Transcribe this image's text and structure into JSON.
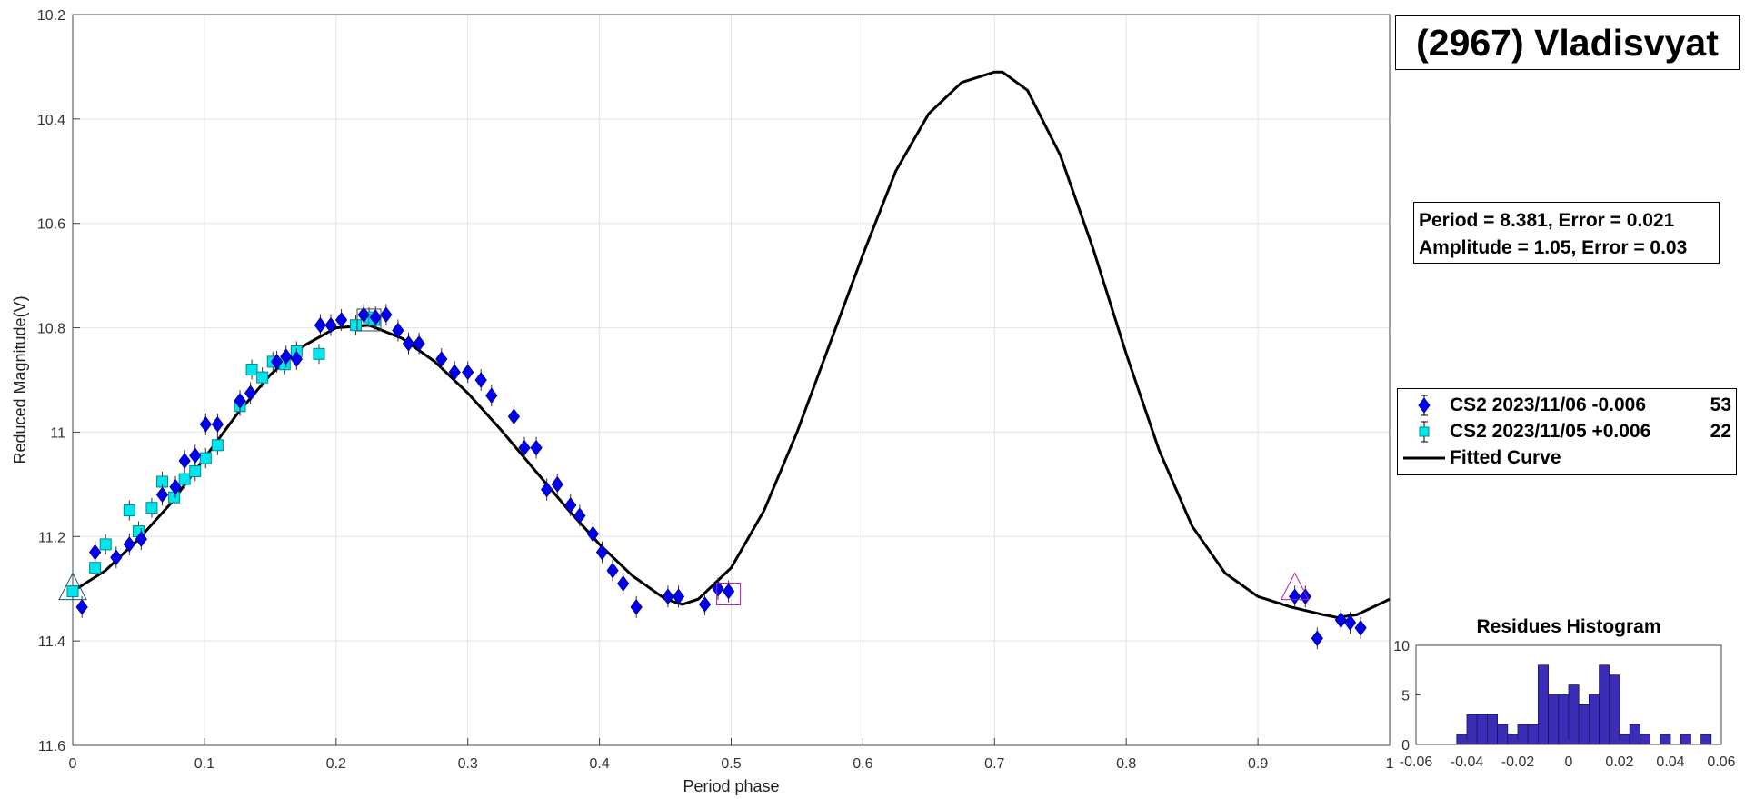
{
  "title": "(2967) Vladisvyat",
  "stats": {
    "period_line": "Period =  8.381, Error = 0.021",
    "amplitude_line": "Amplitude = 1.05, Error = 0.03"
  },
  "legend": [
    {
      "label": "CS2 2023/11/06   -0.006",
      "count": "53",
      "marker": "diamond",
      "color": "#0000ee"
    },
    {
      "label": "CS2 2023/11/05   +0.006",
      "count": "22",
      "marker": "square",
      "color": "#00e5ee"
    },
    {
      "label": "Fitted Curve",
      "count": "",
      "marker": "line",
      "color": "#000000"
    }
  ],
  "chart_data": [
    {
      "type": "scatter",
      "title": "",
      "xlabel": "Period phase",
      "ylabel": "Reduced Magnitude(V)",
      "xlim": [
        0,
        1
      ],
      "ylim": [
        10.2,
        11.6
      ],
      "y_reversed": true,
      "grid": true,
      "x_ticks": [
        "0",
        "0.1",
        "0.2",
        "0.3",
        "0.4",
        "0.5",
        "0.6",
        "0.7",
        "0.8",
        "0.9",
        "1"
      ],
      "y_ticks": [
        "10.2",
        "10.4",
        "10.6",
        "10.8",
        "11",
        "11.2",
        "11.4",
        "11.6"
      ],
      "series": [
        {
          "name": "CS2 2023/11/06   -0.006",
          "marker": "diamond",
          "color": "#0000ee",
          "x": [
            0.007,
            0.017,
            0.033,
            0.043,
            0.052,
            0.068,
            0.078,
            0.085,
            0.093,
            0.101,
            0.11,
            0.127,
            0.135,
            0.155,
            0.162,
            0.17,
            0.188,
            0.196,
            0.204,
            0.221,
            0.23,
            0.238,
            0.247,
            0.255,
            0.263,
            0.28,
            0.29,
            0.3,
            0.31,
            0.318,
            0.335,
            0.343,
            0.352,
            0.36,
            0.368,
            0.378,
            0.385,
            0.395,
            0.402,
            0.41,
            0.418,
            0.428,
            0.452,
            0.46,
            0.48,
            0.49,
            0.498,
            0.928,
            0.936,
            0.945,
            0.963,
            0.97,
            0.978
          ],
          "y": [
            11.335,
            11.23,
            11.24,
            11.215,
            11.205,
            11.12,
            11.105,
            11.055,
            11.045,
            10.985,
            10.985,
            10.94,
            10.925,
            10.865,
            10.855,
            10.86,
            10.795,
            10.795,
            10.785,
            10.775,
            10.78,
            10.775,
            10.805,
            10.83,
            10.83,
            10.86,
            10.885,
            10.885,
            10.9,
            10.93,
            10.97,
            11.03,
            11.03,
            11.11,
            11.1,
            11.14,
            11.16,
            11.195,
            11.23,
            11.265,
            11.29,
            11.335,
            11.315,
            11.315,
            11.33,
            11.3,
            11.305,
            11.315,
            11.315,
            11.395,
            11.36,
            11.365,
            11.375
          ]
        },
        {
          "name": "CS2 2023/11/05   +0.006",
          "marker": "square",
          "color": "#00e5ee",
          "x": [
            0.0,
            0.017,
            0.025,
            0.043,
            0.05,
            0.06,
            0.068,
            0.077,
            0.085,
            0.093,
            0.101,
            0.11,
            0.127,
            0.136,
            0.144,
            0.152,
            0.161,
            0.17,
            0.187,
            0.215,
            0.225,
            0.229
          ],
          "y": [
            11.305,
            11.26,
            11.215,
            11.15,
            11.19,
            11.145,
            11.095,
            11.125,
            11.09,
            11.075,
            11.05,
            11.025,
            10.95,
            10.88,
            10.895,
            10.865,
            10.87,
            10.845,
            10.85,
            10.795,
            10.78,
            10.785
          ]
        },
        {
          "name": "Fitted Curve",
          "marker": "line",
          "color": "#000000",
          "x": [
            0,
            0.025,
            0.05,
            0.075,
            0.1,
            0.125,
            0.15,
            0.175,
            0.2,
            0.225,
            0.25,
            0.275,
            0.3,
            0.325,
            0.35,
            0.375,
            0.4,
            0.425,
            0.45,
            0.463,
            0.475,
            0.5,
            0.525,
            0.55,
            0.575,
            0.6,
            0.625,
            0.65,
            0.675,
            0.7,
            0.706,
            0.725,
            0.75,
            0.775,
            0.8,
            0.825,
            0.85,
            0.875,
            0.9,
            0.925,
            0.95,
            0.96,
            0.975,
            1.0
          ],
          "y": [
            11.305,
            11.265,
            11.205,
            11.135,
            11.05,
            10.965,
            10.89,
            10.835,
            10.8,
            10.795,
            10.82,
            10.865,
            10.925,
            10.995,
            11.07,
            11.145,
            11.215,
            11.275,
            11.32,
            11.33,
            11.32,
            11.26,
            11.15,
            11.0,
            10.83,
            10.66,
            10.5,
            10.39,
            10.33,
            10.31,
            10.31,
            10.345,
            10.47,
            10.65,
            10.85,
            11.035,
            11.18,
            11.27,
            11.315,
            11.335,
            11.35,
            11.355,
            11.35,
            11.32
          ]
        }
      ]
    },
    {
      "type": "bar",
      "title": "Residues Histogram",
      "xlim": [
        -0.06,
        0.06
      ],
      "ylim": [
        0,
        10
      ],
      "x_ticks": [
        "-0.06",
        "-0.04",
        "-0.02",
        "0",
        "0.02",
        "0.04",
        "0.06"
      ],
      "y_ticks": [
        "0",
        "5",
        "10"
      ],
      "color": "#3b2db5",
      "bin_width": 0.004,
      "bin_starts": [
        -0.044,
        -0.04,
        -0.036,
        -0.032,
        -0.028,
        -0.024,
        -0.02,
        -0.016,
        -0.012,
        -0.008,
        -0.004,
        0.0,
        0.004,
        0.008,
        0.012,
        0.016,
        0.02,
        0.024,
        0.028,
        0.032,
        0.036,
        0.04,
        0.044,
        0.048,
        0.052
      ],
      "values": [
        1,
        3,
        3,
        3,
        2,
        1,
        2,
        2,
        8,
        5,
        5,
        6,
        4,
        5,
        8,
        7,
        1,
        2,
        1,
        0,
        1,
        0,
        1,
        0,
        1
      ]
    }
  ]
}
